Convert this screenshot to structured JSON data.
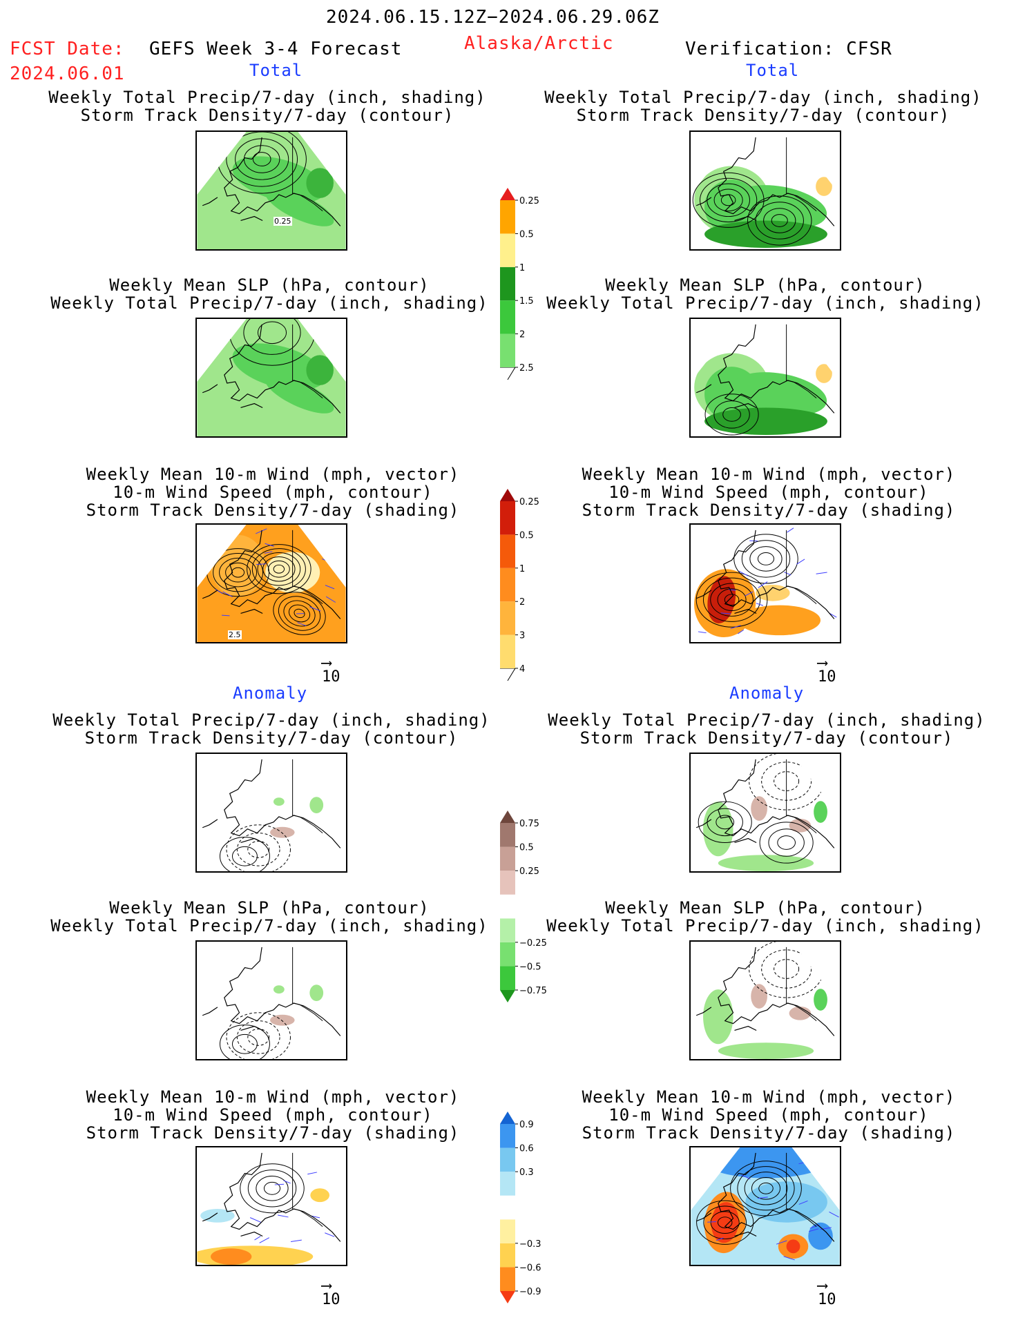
{
  "header": {
    "period": "2024.06.15.12Z−2024.06.29.06Z",
    "fcst_label": "FCST Date:",
    "fcst_date": "2024.06.01",
    "product": "GEFS Week 3-4 Forecast",
    "region": "Alaska/Arctic",
    "verification": "Verification: CFSR"
  },
  "sections": {
    "total": "Total",
    "anomaly": "Anomaly"
  },
  "titles": {
    "precip_storm": [
      "Weekly Total Precip/7-day (inch, shading)",
      "Storm Track Density/7-day (contour)"
    ],
    "slp_precip": [
      "Weekly Mean SLP (hPa, contour)",
      "Weekly Total Precip/7-day (inch, shading)"
    ],
    "wind_storm": [
      "Weekly Mean 10-m Wind (mph, vector)",
      "10-m Wind Speed (mph, contour)",
      "Storm Track Density/7-day (shading)"
    ]
  },
  "panel_labels": {
    "precip_contour": "0.25",
    "wind_contour": "2.5"
  },
  "vector_ref": "10",
  "colorbars": {
    "precip_total": {
      "labels": [
        "0.25",
        "0.5",
        "1",
        "1.5",
        "2",
        "2.5"
      ],
      "colors": [
        "#b4f0a8",
        "#78e070",
        "#3cc83c",
        "#1e961e",
        "#fff08c",
        "#ffa500",
        "#e61e1e"
      ]
    },
    "storm_total": {
      "labels": [
        "0.25",
        "0.5",
        "1",
        "2",
        "3",
        "4"
      ],
      "colors": [
        "#fffab4",
        "#ffdc6e",
        "#ffb43c",
        "#ff8c1e",
        "#f55a0a",
        "#d21e0a",
        "#a00a0a"
      ]
    },
    "precip_anom": {
      "labels": [
        "0.75",
        "0.5",
        "0.25",
        "−0.25",
        "−0.5",
        "−0.75"
      ],
      "colors": [
        "#1e961e",
        "#3cc83c",
        "#78e070",
        "#b4f0a8",
        "#ffffff",
        "#e6c3bb",
        "#c8a096",
        "#a0786e",
        "#6e463c"
      ]
    },
    "storm_anom": {
      "labels": [
        "0.9",
        "0.6",
        "0.3",
        "−0.3",
        "−0.6",
        "−0.9"
      ],
      "colors": [
        "#f53c14",
        "#ff8c1e",
        "#ffd250",
        "#fff0a0",
        "#ffffff",
        "#b4e6f5",
        "#78c8f0",
        "#3c96f0",
        "#1464d2"
      ]
    }
  },
  "colors": {
    "map_green": "#5ad25a",
    "map_light_green": "#a0e68c",
    "map_orange": "#ffa01e",
    "map_red": "#dc2814",
    "map_blue": "#2878e6",
    "map_brown": "#d7b4aa"
  }
}
